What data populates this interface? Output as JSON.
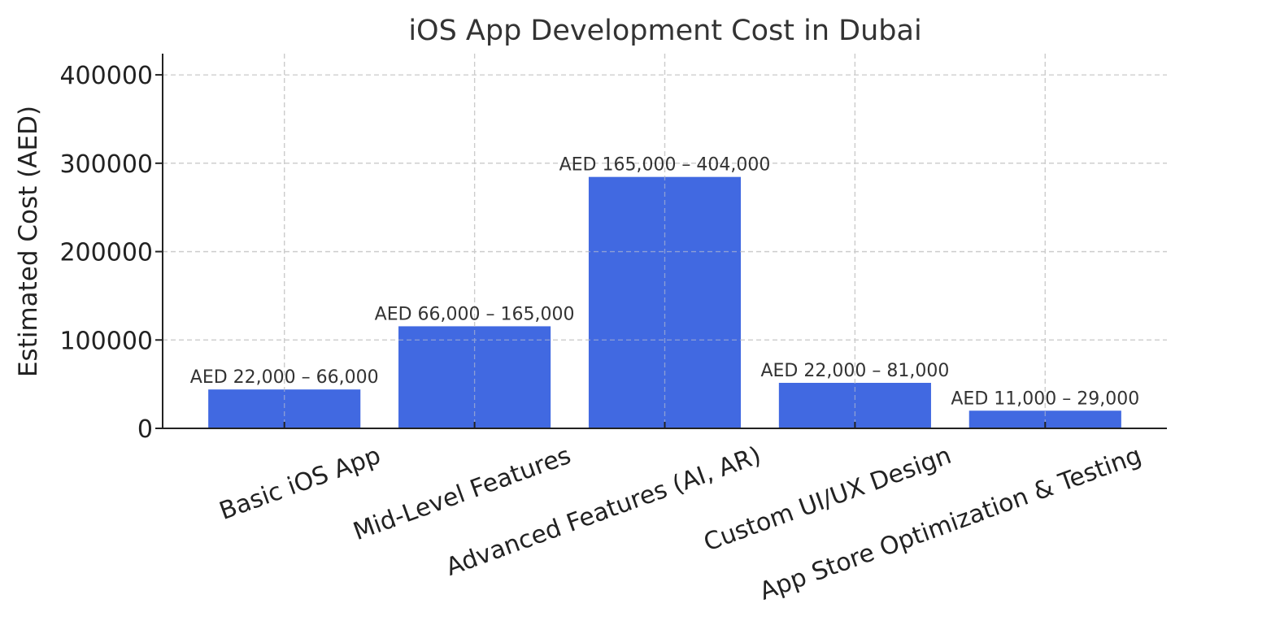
{
  "chart_data": {
    "type": "bar",
    "title": "iOS App Development Cost in Dubai",
    "xlabel": "",
    "ylabel": "Estimated Cost (AED)",
    "categories": [
      "Basic iOS App",
      "Mid-Level Features",
      "Advanced Features (AI, AR)",
      "Custom UI/UX Design",
      "App Store Optimization & Testing"
    ],
    "values": [
      44000,
      115500,
      284500,
      51500,
      20000
    ],
    "data_labels": [
      "AED 22,000 – 66,000",
      "AED 66,000 – 165,000",
      "AED 165,000 – 404,000",
      "AED 22,000 – 81,000",
      "AED 11,000 – 29,000"
    ],
    "yticks": [
      0,
      100000,
      200000,
      300000,
      400000
    ],
    "ylim": [
      0,
      424000
    ],
    "grid": true,
    "legend": "none",
    "colors": {
      "bar": "#4169E1",
      "grid": "#cccccc",
      "axis": "#222222"
    }
  }
}
